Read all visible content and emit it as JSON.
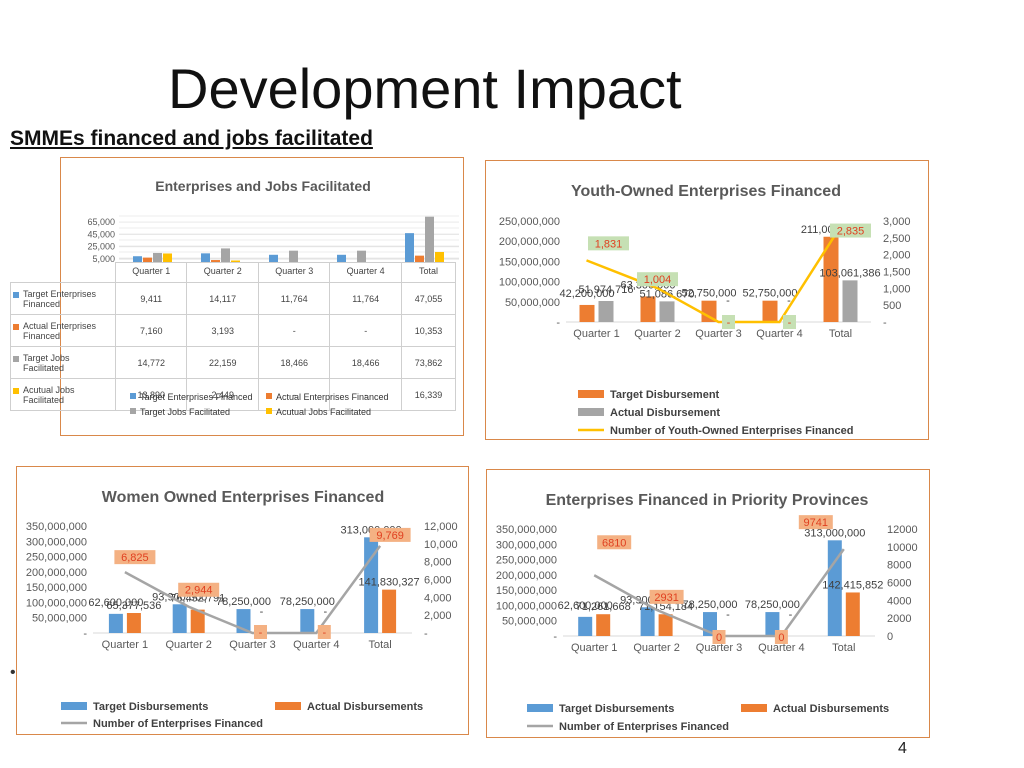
{
  "slide": {
    "title": "Development Impact",
    "subtitle": "SMMEs financed and jobs facilitated",
    "page_number": "4",
    "bullet": "•"
  },
  "colors": {
    "blue": "#5b9bd5",
    "orange": "#ed7d31",
    "gray": "#a5a5a5",
    "yellow": "#ffc000",
    "panel_border": "#d9884a"
  },
  "chart_data": [
    {
      "id": "enterprises-jobs",
      "type": "bar",
      "title": "Enterprises and Jobs Facilitated",
      "categories": [
        "Quarter 1",
        "Quarter 2",
        "Quarter 3",
        "Quarter 4",
        "Total"
      ],
      "y_ticks": [
        "65,000",
        "45,000",
        "25,000",
        "5,000"
      ],
      "ylim": [
        0,
        75000
      ],
      "series": [
        {
          "name": "Target Enterprises Financed",
          "values": [
            9411,
            14117,
            11764,
            11764,
            47055
          ],
          "labels": [
            "9,411",
            "14,117",
            "11,764",
            "11,764",
            "47,055"
          ]
        },
        {
          "name": "Actual Enterprises Financed",
          "values": [
            7160,
            3193,
            0,
            0,
            10353
          ],
          "labels": [
            "7,160",
            "3,193",
            "-",
            "-",
            "10,353"
          ]
        },
        {
          "name": "Target Jobs Facilitated",
          "values": [
            14772,
            22159,
            18466,
            18466,
            73862
          ],
          "labels": [
            "14,772",
            "22,159",
            "18,466",
            "18,466",
            "73,862"
          ]
        },
        {
          "name": "Acutual Jobs Facilitated",
          "values": [
            13890,
            2449,
            0,
            0,
            16339
          ],
          "labels": [
            "13,890",
            "2,449",
            "-",
            "-",
            "16,339"
          ]
        }
      ],
      "table_row_labels": [
        "Target Enterprises Financed",
        "Actual Enterprises Financed",
        "Target Jobs Facilitated",
        "Acutual Jobs Facilitated"
      ],
      "legend": [
        "Target Enterprises Financed",
        "Actual Enterprises Financed",
        "Target Jobs Facilitated",
        "Acutual Jobs Facilitated"
      ]
    },
    {
      "id": "youth",
      "type": "bar",
      "title": "Youth-Owned Enterprises Financed",
      "categories": [
        "Quarter 1",
        "Quarter 2",
        "Quarter 3",
        "Quarter 4",
        "Total"
      ],
      "y_ticks": [
        "250,000,000",
        "200,000,000",
        "150,000,000",
        "100,000,000",
        "50,000,000",
        "-"
      ],
      "y2_ticks": [
        "3,000",
        "2,500",
        "2,000",
        "1,500",
        "1,000",
        "500",
        "-"
      ],
      "ylim": [
        0,
        250000000
      ],
      "y2lim": [
        0,
        3000
      ],
      "series": [
        {
          "name": "Target Disbursement",
          "values": [
            42200000,
            63300000,
            52750000,
            52750000,
            211000000
          ],
          "labels": [
            "42,200,000",
            "63,300,000",
            "52,750,000",
            "52,750,000",
            "211,000,000"
          ]
        },
        {
          "name": "Actual Disbursement",
          "values": [
            51974716,
            51086670,
            0,
            0,
            103061386
          ],
          "labels": [
            "51,974,716",
            "51,086,670",
            "-",
            "-",
            "103,061,386"
          ]
        },
        {
          "name": "Number of Youth-Owned Enterprises Financed",
          "values": [
            1831,
            1004,
            0,
            0,
            2835
          ],
          "labels": [
            "1,831",
            "1,004",
            "-",
            "-",
            "2,835"
          ],
          "axis": "secondary"
        }
      ],
      "legend": [
        "Target Disbursement",
        "Actual Disbursement",
        "Number of Youth-Owned Enterprises Financed"
      ]
    },
    {
      "id": "women",
      "type": "bar",
      "title": "Women Owned Enterprises Financed",
      "categories": [
        "Quarter 1",
        "Quarter 2",
        "Quarter 3",
        "Quarter 4",
        "Total"
      ],
      "y_ticks": [
        "350,000,000",
        "300,000,000",
        "250,000,000",
        "200,000,000",
        "150,000,000",
        "100,000,000",
        "50,000,000",
        "-"
      ],
      "y2_ticks": [
        "12,000",
        "10,000",
        "8,000",
        "6,000",
        "4,000",
        "2,000",
        "-"
      ],
      "ylim": [
        0,
        350000000
      ],
      "y2lim": [
        0,
        12000
      ],
      "series": [
        {
          "name": "Target Disbursements",
          "values": [
            62600000,
            93900000,
            78250000,
            78250000,
            313000000
          ],
          "labels": [
            "62,600,000",
            "93,900,000",
            "78,250,000",
            "78,250,000",
            "313,000,000"
          ]
        },
        {
          "name": "Actual Disbursements",
          "values": [
            65377536,
            76452791,
            0,
            0,
            141830327
          ],
          "labels": [
            "65,377,536",
            "76,452,791",
            "-",
            "-",
            "141,830,327"
          ]
        },
        {
          "name": "Number of Enterprises Financed",
          "values": [
            6825,
            2944,
            0,
            0,
            9769
          ],
          "labels": [
            "6,825",
            "2,944",
            "-",
            "-",
            "9,769"
          ],
          "axis": "secondary"
        }
      ],
      "legend": [
        "Target Disbursements",
        "Actual Disbursements",
        "Number of Enterprises Financed"
      ]
    },
    {
      "id": "provinces",
      "type": "bar",
      "title": "Enterprises Financed in Priority Provinces",
      "categories": [
        "Quarter 1",
        "Quarter 2",
        "Quarter 3",
        "Quarter 4",
        "Total"
      ],
      "y_ticks": [
        "350,000,000",
        "300,000,000",
        "250,000,000",
        "200,000,000",
        "150,000,000",
        "100,000,000",
        "50,000,000",
        "-"
      ],
      "y2_ticks": [
        "12000",
        "10000",
        "8000",
        "6000",
        "4000",
        "2000",
        "0"
      ],
      "ylim": [
        0,
        350000000
      ],
      "y2lim": [
        0,
        12000
      ],
      "series": [
        {
          "name": "Target Disbursements",
          "values": [
            62600000,
            93900000,
            78250000,
            78250000,
            313000000
          ],
          "labels": [
            "62,600,000",
            "93,900,000",
            "78,250,000",
            "78,250,000",
            "313,000,000"
          ]
        },
        {
          "name": "Actual Disbursements",
          "values": [
            71261668,
            71154184,
            0,
            0,
            142415852
          ],
          "labels": [
            "71,261,668",
            "71,154,184",
            "-",
            "-",
            "142,415,852"
          ]
        },
        {
          "name": "Number of Enterprises Financed",
          "values": [
            6810,
            2931,
            0,
            0,
            9741
          ],
          "labels": [
            "6810",
            "2931",
            "0",
            "0",
            "9741"
          ],
          "axis": "secondary"
        }
      ],
      "legend": [
        "Target Disbursements",
        "Actual Disbursements",
        "Number of Enterprises Financed"
      ]
    }
  ]
}
